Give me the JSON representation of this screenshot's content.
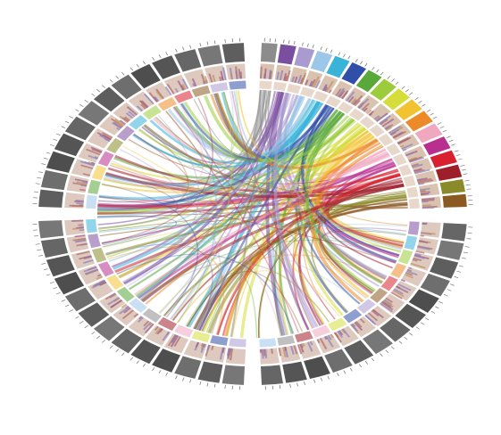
{
  "diagram": {
    "type": "circos",
    "palette": [
      "#8c8c8c",
      "#7b4fa0",
      "#a99bd0",
      "#9cc7e8",
      "#39b3d8",
      "#2f4fa8",
      "#5aa83a",
      "#9ccc3c",
      "#d6dc3a",
      "#f2c230",
      "#ec8a2a",
      "#f0a7c0",
      "#b82f8f",
      "#d92030",
      "#9e1f2a",
      "#8a8a2a",
      "#8a5a22"
    ]
  }
}
